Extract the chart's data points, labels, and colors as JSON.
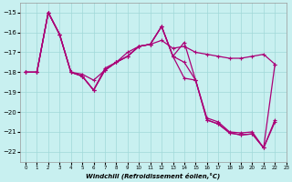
{
  "background_color": "#c8f0f0",
  "grid_color": "#a0d8d8",
  "line_color": "#aa0077",
  "xlim": [
    -0.5,
    23
  ],
  "ylim": [
    -22.5,
    -14.5
  ],
  "yticks": [
    -15,
    -16,
    -17,
    -18,
    -19,
    -20,
    -21,
    -22
  ],
  "xticks": [
    0,
    1,
    2,
    3,
    4,
    5,
    6,
    7,
    8,
    9,
    10,
    11,
    12,
    13,
    14,
    15,
    16,
    17,
    18,
    19,
    20,
    21,
    22,
    23
  ],
  "xlabel": "Windchill (Refroidissement éolien,°C)",
  "line1": [
    -18.0,
    -18.0,
    -15.0,
    -16.1,
    -18.0,
    -18.1,
    -18.4,
    -17.9,
    -17.5,
    -17.0,
    -16.7,
    -16.6,
    -16.4,
    -16.8,
    -16.7,
    -17.0,
    -17.1,
    -17.2,
    -17.3,
    -17.3,
    -17.2,
    -17.1,
    -17.6
  ],
  "line2": [
    -18.0,
    -18.0,
    -15.0,
    -16.1,
    -18.0,
    -18.2,
    -18.9,
    -17.8,
    -17.5,
    -17.2,
    -16.7,
    -16.6,
    -15.7,
    -17.2,
    -16.5,
    -18.4,
    -20.3,
    -20.5,
    -21.0,
    -21.05,
    -21.0,
    -21.8,
    -20.4
  ],
  "line3": [
    -18.0,
    -18.0,
    -15.0,
    -16.1,
    -18.0,
    -18.2,
    -18.9,
    -17.9,
    -17.5,
    -17.2,
    -16.7,
    -16.6,
    -15.7,
    -17.2,
    -17.5,
    -18.4,
    -20.4,
    -20.6,
    -21.05,
    -21.15,
    -21.1,
    -21.8,
    -20.5
  ],
  "line4": [
    -18.0,
    -18.0,
    -15.0,
    -16.1,
    -18.0,
    -18.2,
    -18.9,
    -17.9,
    -17.5,
    -17.2,
    -16.7,
    -16.6,
    -15.7,
    -17.2,
    -18.3,
    -18.4,
    -20.4,
    -20.6,
    -21.05,
    -21.15,
    -21.1,
    -21.8,
    -17.6
  ]
}
